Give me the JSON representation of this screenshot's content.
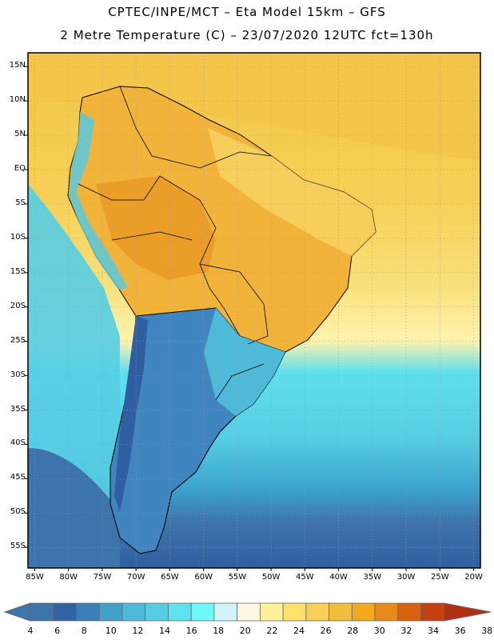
{
  "title_line1": "CPTEC/INPE/MCT –  Eta Model 15km – GFS",
  "title_line2": "2 Metre Temperature (C) – 23/07/2020 12UTC fct=130h",
  "map": {
    "lon_range": [
      -86,
      -19
    ],
    "lat_range": [
      17,
      -58
    ],
    "lat_labels": [
      {
        "text": "15N",
        "lat": 15
      },
      {
        "text": "10N",
        "lat": 10
      },
      {
        "text": "5N",
        "lat": 5
      },
      {
        "text": "EQ",
        "lat": 0
      },
      {
        "text": "5S",
        "lat": -5
      },
      {
        "text": "10S",
        "lat": -10
      },
      {
        "text": "15S",
        "lat": -15
      },
      {
        "text": "20S",
        "lat": -20
      },
      {
        "text": "25S",
        "lat": -25
      },
      {
        "text": "30S",
        "lat": -30
      },
      {
        "text": "35S",
        "lat": -35
      },
      {
        "text": "40S",
        "lat": -40
      },
      {
        "text": "45S",
        "lat": -45
      },
      {
        "text": "50S",
        "lat": -50
      },
      {
        "text": "55S",
        "lat": -55
      }
    ],
    "lon_labels": [
      {
        "text": "85W",
        "lon": -85
      },
      {
        "text": "80W",
        "lon": -80
      },
      {
        "text": "75W",
        "lon": -75
      },
      {
        "text": "70W",
        "lon": -70
      },
      {
        "text": "65W",
        "lon": -65
      },
      {
        "text": "60W",
        "lon": -60
      },
      {
        "text": "55W",
        "lon": -55
      },
      {
        "text": "50W",
        "lon": -50
      },
      {
        "text": "45W",
        "lon": -45
      },
      {
        "text": "40W",
        "lon": -40
      },
      {
        "text": "35W",
        "lon": -35
      },
      {
        "text": "30W",
        "lon": -30
      },
      {
        "text": "25W",
        "lon": -25
      },
      {
        "text": "20W",
        "lon": -20
      }
    ]
  },
  "colorbar": {
    "labels": [
      "4",
      "6",
      "8",
      "10",
      "12",
      "14",
      "16",
      "18",
      "20",
      "22",
      "24",
      "26",
      "28",
      "30",
      "32",
      "34",
      "36",
      "38"
    ],
    "colors": [
      "#3e74ac",
      "#2f63a6",
      "#3a7fb8",
      "#41a1c8",
      "#4fb9d8",
      "#56cde3",
      "#5ee3ee",
      "#6ef7f7",
      "#d2f5fb",
      "#fff8e1",
      "#fef39a",
      "#fde36c",
      "#f8cf57",
      "#f0bd3d",
      "#f1a91e",
      "#e88a1a",
      "#d9620f",
      "#c34010",
      "#b12f12"
    ]
  }
}
